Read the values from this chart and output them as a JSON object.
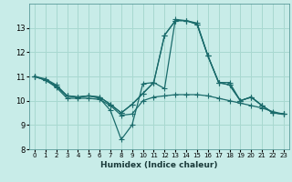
{
  "title": "",
  "xlabel": "Humidex (Indice chaleur)",
  "ylabel": "",
  "background_color": "#c8ece8",
  "grid_color": "#a8d8d0",
  "line_color": "#1a6b6b",
  "x_values": [
    0,
    1,
    2,
    3,
    4,
    5,
    6,
    7,
    8,
    9,
    10,
    11,
    12,
    13,
    14,
    15,
    16,
    17,
    18,
    19,
    20,
    21,
    22,
    23
  ],
  "series": [
    [
      11.0,
      10.9,
      10.65,
      10.2,
      10.15,
      10.2,
      10.1,
      9.6,
      8.4,
      9.0,
      10.7,
      10.75,
      10.5,
      13.35,
      13.3,
      13.2,
      11.85,
      10.75,
      10.75,
      10.0,
      10.15,
      9.8,
      9.5,
      9.45
    ],
    [
      11.0,
      10.85,
      10.6,
      10.2,
      10.15,
      10.2,
      10.15,
      9.85,
      9.5,
      9.85,
      10.3,
      10.75,
      12.7,
      13.3,
      13.3,
      13.15,
      11.85,
      10.75,
      10.65,
      10.0,
      10.15,
      9.8,
      9.5,
      9.45
    ],
    [
      11.0,
      10.85,
      10.6,
      10.2,
      10.15,
      10.2,
      10.15,
      9.85,
      9.5,
      9.85,
      10.3,
      10.75,
      12.7,
      13.3,
      13.3,
      13.15,
      11.85,
      10.75,
      10.65,
      10.0,
      10.15,
      9.8,
      9.5,
      9.45
    ],
    [
      11.0,
      10.85,
      10.55,
      10.1,
      10.1,
      10.1,
      10.05,
      9.8,
      9.4,
      9.45,
      10.0,
      10.15,
      10.2,
      10.25,
      10.25,
      10.25,
      10.2,
      10.1,
      10.0,
      9.9,
      9.8,
      9.7,
      9.55,
      9.45
    ]
  ],
  "ylim": [
    8,
    14
  ],
  "xlim": [
    -0.5,
    23.5
  ],
  "yticks": [
    8,
    9,
    10,
    11,
    12,
    13
  ],
  "xticks": [
    0,
    1,
    2,
    3,
    4,
    5,
    6,
    7,
    8,
    9,
    10,
    11,
    12,
    13,
    14,
    15,
    16,
    17,
    18,
    19,
    20,
    21,
    22,
    23
  ],
  "xtick_labels": [
    "0",
    "1",
    "2",
    "3",
    "4",
    "5",
    "6",
    "7",
    "8",
    "9",
    "10",
    "11",
    "12",
    "13",
    "14",
    "15",
    "16",
    "17",
    "18",
    "19",
    "20",
    "21",
    "22",
    "23"
  ],
  "marker": "+",
  "markersize": 4,
  "markeredgewidth": 0.8,
  "linewidth": 0.9,
  "xlabel_fontsize": 6.5,
  "xlabel_fontweight": "bold",
  "xtick_fontsize": 5,
  "ytick_fontsize": 6
}
